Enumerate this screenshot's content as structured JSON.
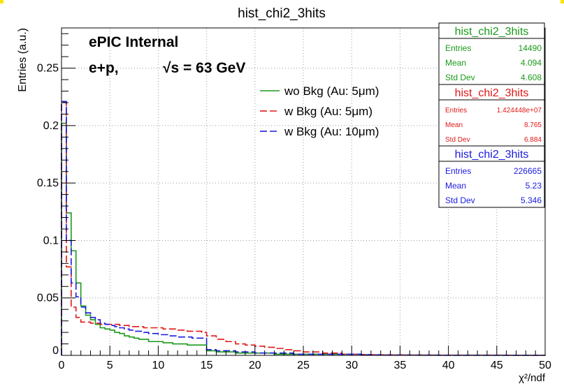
{
  "chart_data": {
    "type": "histogram",
    "title": "hist_chi2_3hits",
    "xlabel": "χ²/ndf",
    "ylabel": "Entries (a.u.)",
    "xlim": [
      0,
      50
    ],
    "ylim": [
      0,
      0.285
    ],
    "grid": true,
    "x_ticks": [
      "0",
      "5",
      "10",
      "15",
      "20",
      "25",
      "30",
      "35",
      "40",
      "45",
      "50"
    ],
    "y_ticks": [
      "0",
      "0.05",
      "0.1",
      "0.15",
      "0.2",
      "0.25"
    ],
    "annotations": [
      "ePIC Internal",
      "e+p,",
      "√s = 63 GeV"
    ],
    "legend": {
      "position": "top-center",
      "entries": [
        "wo Bkg (Au: 5μm)",
        "w Bkg (Au: 5μm)",
        "w Bkg (Au: 10μm)"
      ]
    },
    "bin_edges": [
      0,
      0.5,
      1,
      1.5,
      2,
      2.5,
      3,
      3.5,
      4,
      4.5,
      5,
      5.5,
      6,
      6.5,
      7,
      7.5,
      8,
      8.5,
      9,
      9.5,
      10,
      10.5,
      11,
      11.5,
      12,
      12.5,
      13,
      13.5,
      14,
      14.5,
      15,
      16,
      17,
      18,
      19,
      20,
      21,
      22,
      23,
      24,
      25,
      26,
      27,
      28,
      29,
      30,
      31,
      32,
      33,
      34,
      35,
      36,
      37,
      38,
      39,
      40,
      41,
      42,
      43,
      44,
      45,
      46,
      47,
      48,
      49,
      50
    ],
    "series": [
      {
        "name": "wo Bkg (Au: 5μm)",
        "color": "#1a9a1a",
        "dash": "solid",
        "values": [
          0.202,
          0.124,
          0.091,
          0.063,
          0.043,
          0.035,
          0.031,
          0.027,
          0.024,
          0.023,
          0.022,
          0.02,
          0.019,
          0.017,
          0.016,
          0.015,
          0.014,
          0.014,
          0.012,
          0.012,
          0.012,
          0.011,
          0.011,
          0.01,
          0.01,
          0.01,
          0.009,
          0.009,
          0.009,
          0.009,
          0.004,
          0.003,
          0.003,
          0.002,
          0.002,
          0.002,
          0.002,
          0.001,
          0.001,
          0.001,
          0.001,
          0.001,
          0.001,
          0.001,
          0.001,
          0.001,
          0.0005,
          0.0004,
          0.0003,
          0.0002,
          0.0002,
          0.0002,
          0.0001,
          0.0001,
          0.0001,
          0.0001,
          0.0001,
          0.0001,
          0.0001,
          0.0001,
          0.0001,
          0.0001,
          0.0001,
          0.0001,
          0.0001
        ]
      },
      {
        "name": "w Bkg (Au: 5μm)",
        "color": "#e01818",
        "dash": "dashed",
        "values": [
          0.22,
          0.077,
          0.042,
          0.033,
          0.029,
          0.029,
          0.028,
          0.028,
          0.027,
          0.027,
          0.027,
          0.027,
          0.026,
          0.026,
          0.025,
          0.025,
          0.025,
          0.024,
          0.024,
          0.024,
          0.024,
          0.023,
          0.023,
          0.023,
          0.022,
          0.022,
          0.021,
          0.021,
          0.021,
          0.02,
          0.017,
          0.014,
          0.012,
          0.01,
          0.009,
          0.008,
          0.007,
          0.006,
          0.005,
          0.004,
          0.003,
          0.003,
          0.002,
          0.002,
          0.001,
          0.001,
          0.0007,
          0.0006,
          0.0005,
          0.0004,
          0.0004,
          0.0003,
          0.0003,
          0.0003,
          0.0002,
          0.0002,
          0.0002,
          0.0002,
          0.0002,
          0.0002,
          0.0002,
          0.0001,
          0.0001,
          0.0001,
          0.0001
        ]
      },
      {
        "name": "w Bkg (Au: 10μm)",
        "color": "#1a1ae0",
        "dash": "dashed",
        "values": [
          0.221,
          0.1,
          0.063,
          0.051,
          0.042,
          0.037,
          0.033,
          0.031,
          0.028,
          0.027,
          0.026,
          0.025,
          0.024,
          0.023,
          0.022,
          0.021,
          0.021,
          0.02,
          0.019,
          0.019,
          0.018,
          0.018,
          0.017,
          0.017,
          0.016,
          0.016,
          0.016,
          0.015,
          0.015,
          0.015,
          0.005,
          0.004,
          0.004,
          0.003,
          0.003,
          0.002,
          0.002,
          0.002,
          0.002,
          0.001,
          0.001,
          0.001,
          0.001,
          0.001,
          0.001,
          0.001,
          0.0005,
          0.0004,
          0.0003,
          0.0003,
          0.0002,
          0.0002,
          0.0002,
          0.0002,
          0.0001,
          0.0001,
          0.0001,
          0.0001,
          0.0001,
          0.0001,
          0.0001,
          0.0001,
          0.0001,
          0.0001,
          0.0001
        ]
      }
    ],
    "stats_boxes": [
      {
        "title": "hist_chi2_3hits",
        "color": "#1a9a1a",
        "rows": [
          {
            "label": "Entries",
            "value": "14490"
          },
          {
            "label": "Mean",
            "value": "4.094"
          },
          {
            "label": "Std Dev",
            "value": "4.608"
          }
        ]
      },
      {
        "title": "hist_chi2_3hits",
        "color": "#e01818",
        "rows": [
          {
            "label": "Entries",
            "value": "1.424448e+07"
          },
          {
            "label": "Mean",
            "value": "8.765"
          },
          {
            "label": "Std Dev",
            "value": "6.884"
          }
        ]
      },
      {
        "title": "hist_chi2_3hits",
        "color": "#1a1ae0",
        "rows": [
          {
            "label": "Entries",
            "value": "226665"
          },
          {
            "label": "Mean",
            "value": "5.23"
          },
          {
            "label": "Std Dev",
            "value": "5.346"
          }
        ]
      }
    ]
  }
}
